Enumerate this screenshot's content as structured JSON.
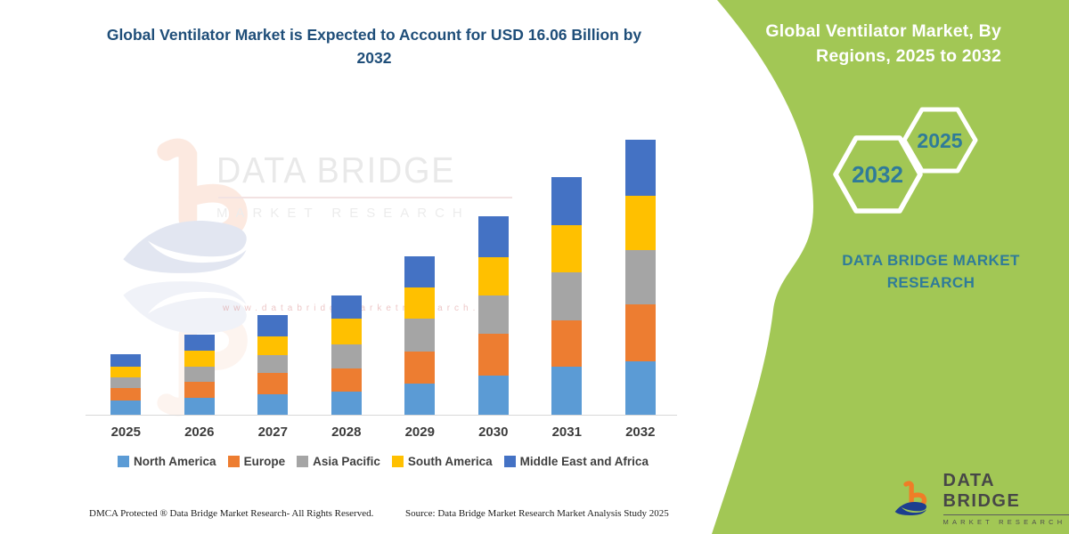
{
  "header": {
    "title": "Global Ventilator Market is Expected to Account for USD 16.06 Billion by 2032"
  },
  "right_panel": {
    "title_line1": "Global Ventilator Market, By",
    "title_line2": "Regions, 2025 to 2032",
    "hexagons": {
      "back_year": "2032",
      "front_year": "2025"
    },
    "brand_line1": "DATA BRIDGE MARKET",
    "brand_line2": "RESEARCH",
    "panel_color": "#a2c755",
    "accent_text_color": "#2f7b99"
  },
  "logo": {
    "name": "DATA BRIDGE",
    "tagline": "MARKET RESEARCH"
  },
  "watermark": {
    "brand": "DATA BRIDGE",
    "tagline": "MARKET RESEARCH",
    "url": "www.databridgemarketresearch.com"
  },
  "footer": {
    "dmca": "DMCA Protected ® Data Bridge Market Research-  All Rights Reserved.",
    "source": "Source: Data Bridge Market Research  Market Analysis Study 2025"
  },
  "chart_data": {
    "type": "bar",
    "stacked": true,
    "title": "Global Ventilator Market is Expected to Account for USD 16.06 Billion by 2032",
    "unit": "USD billion",
    "values_estimated_from_pixels": true,
    "categories": [
      "2025",
      "2026",
      "2027",
      "2028",
      "2029",
      "2030",
      "2031",
      "2032"
    ],
    "series": [
      {
        "name": "North America",
        "color": "#5b9bd5",
        "values": [
          0.83,
          0.99,
          1.18,
          1.35,
          1.82,
          2.29,
          2.81,
          3.12
        ]
      },
      {
        "name": "Europe",
        "color": "#ed7d31",
        "values": [
          0.73,
          0.94,
          1.25,
          1.35,
          1.86,
          2.45,
          2.71,
          3.33
        ]
      },
      {
        "name": "Asia Pacific",
        "color": "#a5a5a5",
        "values": [
          0.62,
          0.88,
          1.04,
          1.43,
          1.96,
          2.22,
          2.81,
          3.17
        ]
      },
      {
        "name": "South America",
        "color": "#ffc000",
        "values": [
          0.62,
          0.94,
          1.09,
          1.46,
          1.78,
          2.25,
          2.76,
          3.17
        ]
      },
      {
        "name": "Middle East and Africa",
        "color": "#4472c4",
        "values": [
          0.73,
          0.92,
          1.28,
          1.35,
          1.83,
          2.39,
          2.79,
          3.27
        ]
      }
    ],
    "totals": [
      3.53,
      4.67,
      5.84,
      6.94,
      9.25,
      11.6,
      13.88,
      16.06
    ],
    "ylim": [
      0,
      16.5
    ],
    "y_axis_visible": false,
    "grid": false,
    "legend_position": "bottom"
  }
}
